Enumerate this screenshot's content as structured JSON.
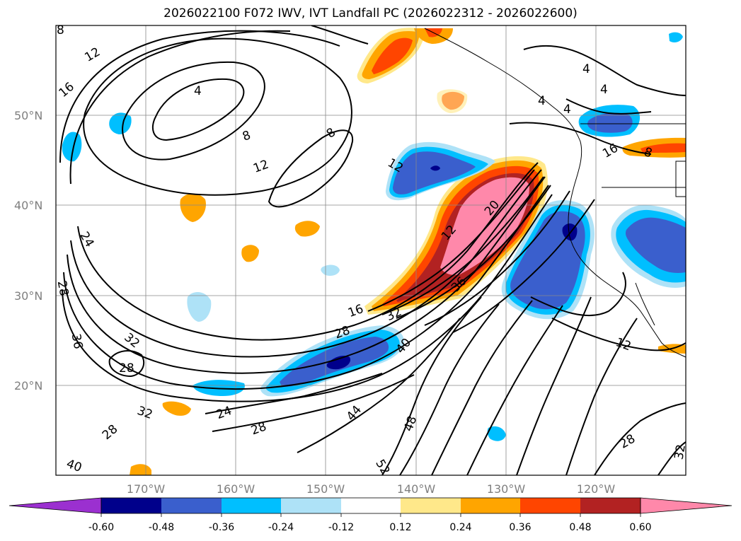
{
  "title": "2026022100 F072 IWV, IVT Landfall PC (2026022312 - 2026022600)",
  "map": {
    "lat_labels": [
      "50°N",
      "40°N",
      "30°N",
      "20°N"
    ],
    "lon_labels": [
      "170°W",
      "160°W",
      "150°W",
      "140°W",
      "130°W",
      "120°W"
    ],
    "contour_labels": [
      "8",
      "12",
      "16",
      "4",
      "8",
      "8",
      "12",
      "12",
      "24",
      "28",
      "36",
      "32",
      "28",
      "32",
      "24",
      "28",
      "28",
      "44",
      "40",
      "48",
      "52",
      "40",
      "20",
      "12",
      "36",
      "32",
      "16",
      "28",
      "12",
      "28",
      "32",
      "4",
      "4",
      "4",
      "4",
      "16",
      "8"
    ]
  },
  "colorbar": {
    "ticks": [
      "-0.60",
      "-0.48",
      "-0.36",
      "-0.24",
      "-0.12",
      "0.12",
      "0.24",
      "0.36",
      "0.48",
      "0.60"
    ],
    "colors": [
      "#9b30d0",
      "#00008b",
      "#3a5fcd",
      "#00bfff",
      "#aee2f7",
      "#ffffff",
      "#ffe88a",
      "#ffa500",
      "#ff4500",
      "#b22222",
      "#ff88aa"
    ]
  }
}
